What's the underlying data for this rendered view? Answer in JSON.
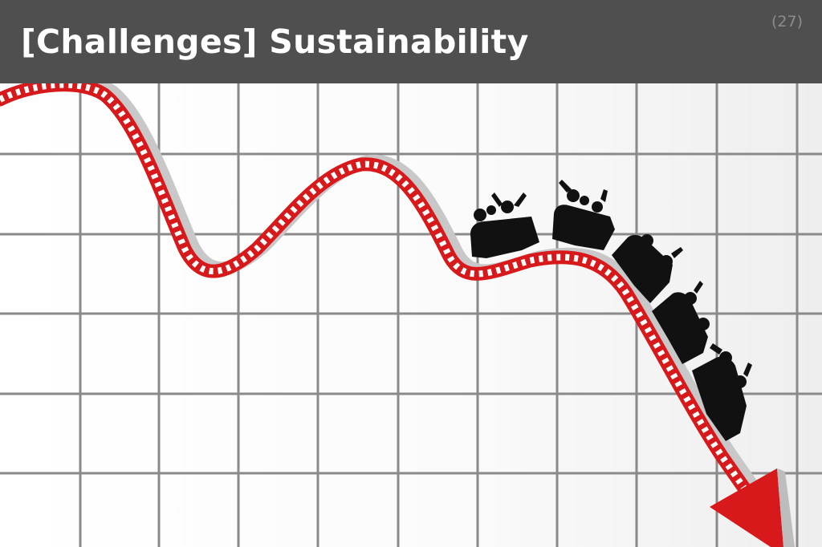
{
  "slide": {
    "title": "[Challenges] Sustainability",
    "page_number": "(27)"
  },
  "illustration": {
    "description_icon": "rollercoaster-downtrend-chart-icon",
    "track_color": "#d7191c",
    "grid_color": "#8a8a8a",
    "rider_color": "#111111"
  }
}
